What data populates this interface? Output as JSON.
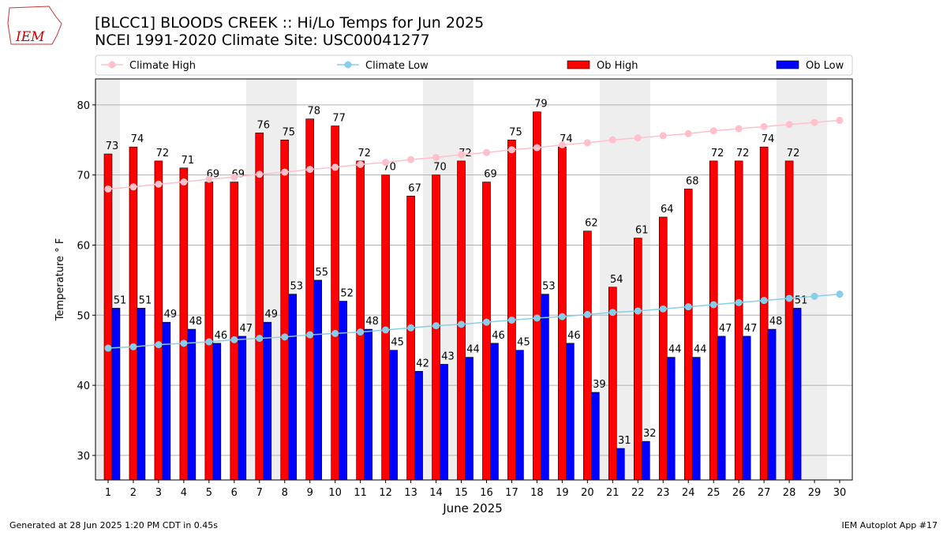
{
  "logo": "IEM",
  "chart_data": {
    "type": "bar",
    "title": "[BLCC1] BLOODS CREEK :: Hi/Lo Temps for Jun 2025",
    "subtitle": "NCEI 1991-2020 Climate Site: USC00041277",
    "x_label": "June 2025",
    "y_label": "Temperature ° F",
    "x": [
      1,
      2,
      3,
      4,
      5,
      6,
      7,
      8,
      9,
      10,
      11,
      12,
      13,
      14,
      15,
      16,
      17,
      18,
      19,
      20,
      21,
      22,
      23,
      24,
      25,
      26,
      27,
      28,
      29,
      30
    ],
    "xlim": [
      0.5,
      30.5
    ],
    "ylim": [
      26.5,
      83.7
    ],
    "yticks": [
      30,
      40,
      50,
      60,
      70,
      80
    ],
    "grid": true,
    "series": [
      {
        "name": "Climate High",
        "type": "line",
        "color": "#ffc0cb",
        "values": [
          68.0,
          68.3,
          68.7,
          69.0,
          69.4,
          69.7,
          70.1,
          70.4,
          70.8,
          71.1,
          71.5,
          71.8,
          72.2,
          72.5,
          72.9,
          73.2,
          73.6,
          73.9,
          74.3,
          74.6,
          75.0,
          75.3,
          75.6,
          75.9,
          76.3,
          76.6,
          76.9,
          77.2,
          77.5,
          77.8
        ]
      },
      {
        "name": "Climate Low",
        "type": "line",
        "color": "#87ceeb",
        "values": [
          45.3,
          45.5,
          45.8,
          46.0,
          46.2,
          46.5,
          46.7,
          46.9,
          47.2,
          47.4,
          47.6,
          47.9,
          48.2,
          48.5,
          48.7,
          49.0,
          49.3,
          49.6,
          49.8,
          50.1,
          50.4,
          50.6,
          50.9,
          51.2,
          51.5,
          51.8,
          52.1,
          52.4,
          52.7,
          53.0
        ]
      },
      {
        "name": "Ob High",
        "type": "bar",
        "color": "#ff0000",
        "values": [
          73,
          74,
          72,
          71,
          69,
          69,
          76,
          75,
          78,
          77,
          72,
          70,
          67,
          70,
          72,
          69,
          75,
          79,
          74,
          62,
          54,
          61,
          64,
          68,
          72,
          72,
          74,
          72,
          null,
          null
        ]
      },
      {
        "name": "Ob Low",
        "type": "bar",
        "color": "#0000ff",
        "values": [
          51,
          51,
          49,
          48,
          46,
          47,
          49,
          53,
          55,
          52,
          48,
          45,
          42,
          43,
          44,
          46,
          45,
          53,
          46,
          39,
          31,
          32,
          44,
          44,
          47,
          47,
          48,
          51,
          null,
          null
        ]
      }
    ]
  },
  "footer": {
    "left": "Generated at 28 Jun 2025 1:20 PM CDT in 0.45s",
    "right": "IEM Autoplot App #17"
  }
}
